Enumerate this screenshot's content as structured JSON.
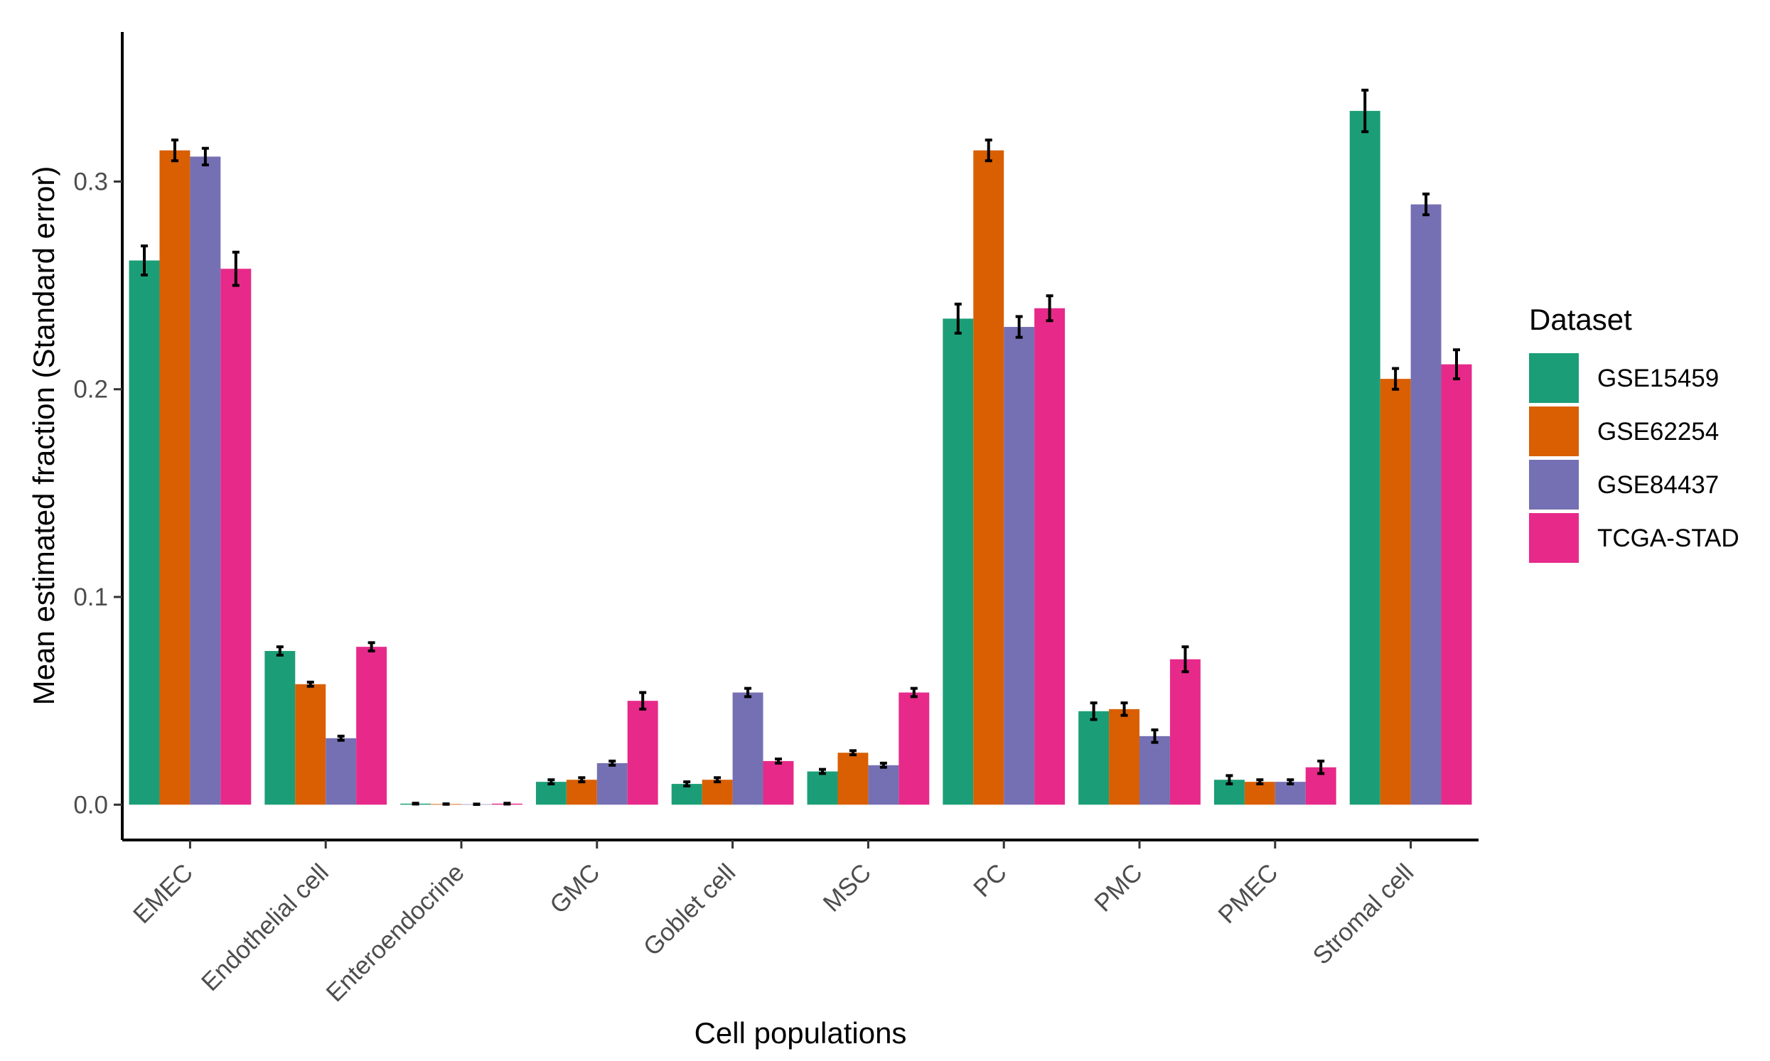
{
  "chart_data": {
    "type": "bar",
    "title": "",
    "xlabel": "Cell populations",
    "ylabel": "Mean estimated fraction (Standard error)",
    "ylim": [
      -0.017,
      0.372
    ],
    "yticks": [
      0.0,
      0.1,
      0.2,
      0.3
    ],
    "ytick_labels": [
      "0.0",
      "0.1",
      "0.2",
      "0.3"
    ],
    "grid": false,
    "legend_title": "Dataset",
    "legend_position": "right",
    "categories": [
      "EMEC",
      "Endothelial cell",
      "Enteroendocrine",
      "GMC",
      "Goblet cell",
      "MSC",
      "PC",
      "PMC",
      "PMEC",
      "Stromal cell"
    ],
    "series": [
      {
        "name": "GSE15459",
        "color": "#1b9e77",
        "values": [
          0.262,
          0.074,
          0.0005,
          0.011,
          0.01,
          0.016,
          0.234,
          0.045,
          0.012,
          0.334
        ],
        "errors": [
          0.007,
          0.002,
          0.0002,
          0.001,
          0.001,
          0.001,
          0.007,
          0.004,
          0.002,
          0.01
        ]
      },
      {
        "name": "GSE62254",
        "color": "#d95f02",
        "values": [
          0.315,
          0.058,
          0.0003,
          0.012,
          0.012,
          0.025,
          0.315,
          0.046,
          0.011,
          0.205
        ],
        "errors": [
          0.005,
          0.001,
          0.0001,
          0.001,
          0.001,
          0.001,
          0.005,
          0.003,
          0.001,
          0.005
        ]
      },
      {
        "name": "GSE84437",
        "color": "#7570b3",
        "values": [
          0.312,
          0.032,
          0.0002,
          0.02,
          0.054,
          0.019,
          0.23,
          0.033,
          0.011,
          0.289
        ],
        "errors": [
          0.004,
          0.001,
          0.0001,
          0.001,
          0.002,
          0.001,
          0.005,
          0.003,
          0.001,
          0.005
        ]
      },
      {
        "name": "TCGA-STAD",
        "color": "#e7298a",
        "values": [
          0.258,
          0.076,
          0.0005,
          0.05,
          0.021,
          0.054,
          0.239,
          0.07,
          0.018,
          0.212
        ],
        "errors": [
          0.008,
          0.002,
          0.0002,
          0.004,
          0.001,
          0.002,
          0.006,
          0.006,
          0.003,
          0.007
        ]
      }
    ]
  }
}
